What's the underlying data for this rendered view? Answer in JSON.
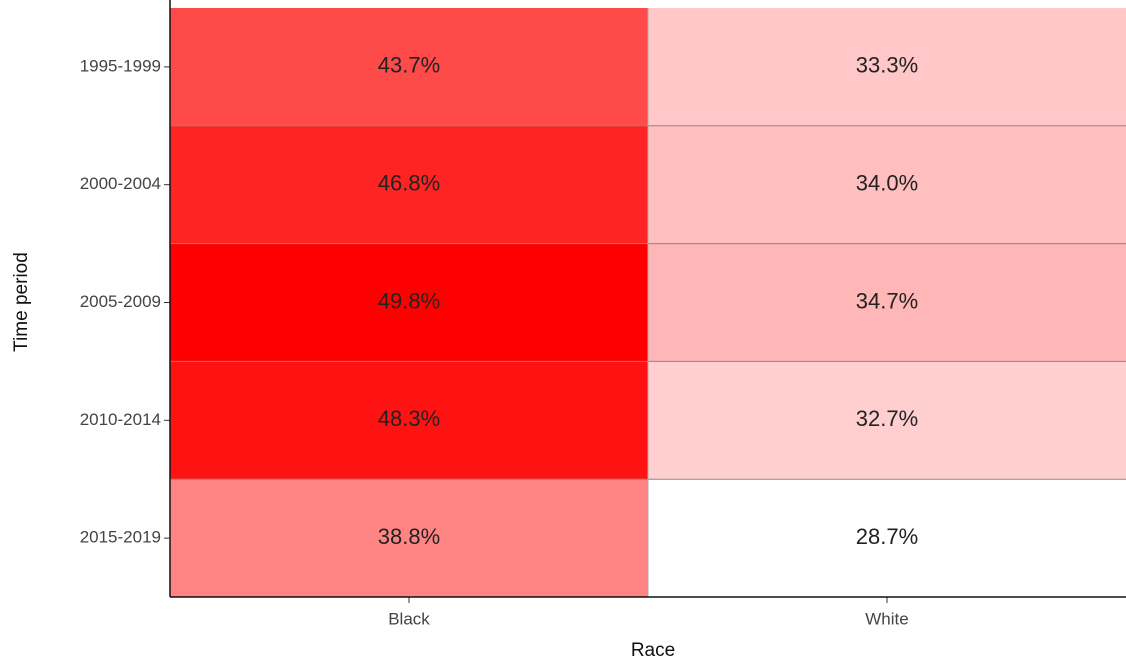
{
  "chart_data": {
    "type": "heatmap",
    "x_label": "Race",
    "y_label": "Time period",
    "x_categories": [
      "Black",
      "White"
    ],
    "y_categories": [
      "1995-1999",
      "2000-2004",
      "2005-2009",
      "2010-2014",
      "2015-2019"
    ],
    "values": [
      [
        43.7,
        33.3
      ],
      [
        46.8,
        34.0
      ],
      [
        49.8,
        34.7
      ],
      [
        48.3,
        32.7
      ],
      [
        38.8,
        28.7
      ]
    ],
    "value_labels": [
      [
        "43.7%",
        "33.3%"
      ],
      [
        "46.8%",
        "34.0%"
      ],
      [
        "49.8%",
        "34.7%"
      ],
      [
        "48.3%",
        "32.7%"
      ],
      [
        "38.8%",
        "28.7%"
      ]
    ],
    "color_low": "#ffffff",
    "color_high": "#ff0000"
  }
}
